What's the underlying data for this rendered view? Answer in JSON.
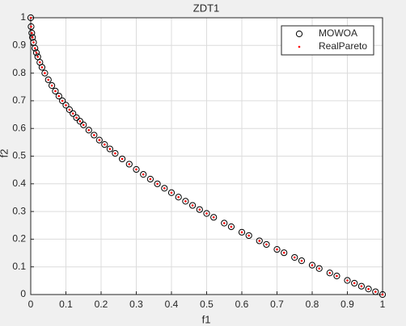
{
  "chart_data": {
    "type": "scatter",
    "title": "ZDT1",
    "x_label": "f1",
    "y_label": "f2",
    "xlim": [
      0,
      1
    ],
    "ylim": [
      0,
      1
    ],
    "xticks": [
      0,
      0.1,
      0.2,
      0.3,
      0.4,
      0.5,
      0.6,
      0.7,
      0.8,
      0.9,
      1
    ],
    "yticks": [
      0,
      0.1,
      0.2,
      0.3,
      0.4,
      0.5,
      0.6,
      0.7,
      0.8,
      0.9,
      1
    ],
    "grid": true,
    "legend": "northeast",
    "series": [
      {
        "name": "MOWOA",
        "color": "#000000",
        "marker": "circle",
        "x": [
          0,
          0.001,
          0.003,
          0.005,
          0.008,
          0.012,
          0.016,
          0.02,
          0.026,
          0.032,
          0.04,
          0.05,
          0.06,
          0.07,
          0.08,
          0.09,
          0.1,
          0.11,
          0.12,
          0.13,
          0.14,
          0.15,
          0.165,
          0.18,
          0.195,
          0.21,
          0.225,
          0.24,
          0.26,
          0.28,
          0.3,
          0.32,
          0.34,
          0.36,
          0.38,
          0.4,
          0.42,
          0.44,
          0.46,
          0.48,
          0.5,
          0.52,
          0.55,
          0.57,
          0.6,
          0.62,
          0.65,
          0.67,
          0.7,
          0.72,
          0.75,
          0.77,
          0.8,
          0.82,
          0.85,
          0.87,
          0.9,
          0.92,
          0.94,
          0.96,
          0.98,
          1
        ],
        "values": [
          1,
          0.968,
          0.945,
          0.929,
          0.911,
          0.89,
          0.874,
          0.859,
          0.839,
          0.821,
          0.8,
          0.776,
          0.755,
          0.735,
          0.717,
          0.7,
          0.684,
          0.668,
          0.654,
          0.639,
          0.626,
          0.613,
          0.594,
          0.576,
          0.558,
          0.542,
          0.526,
          0.51,
          0.49,
          0.471,
          0.452,
          0.434,
          0.417,
          0.4,
          0.384,
          0.368,
          0.352,
          0.337,
          0.322,
          0.307,
          0.293,
          0.279,
          0.258,
          0.245,
          0.225,
          0.213,
          0.194,
          0.181,
          0.163,
          0.151,
          0.134,
          0.122,
          0.106,
          0.094,
          0.078,
          0.067,
          0.051,
          0.041,
          0.03,
          0.02,
          0.01,
          0
        ]
      },
      {
        "name": "RealPareto",
        "color": "#ff0000",
        "marker": "dot",
        "x": [
          0,
          0.001,
          0.003,
          0.005,
          0.008,
          0.012,
          0.016,
          0.02,
          0.026,
          0.032,
          0.04,
          0.05,
          0.06,
          0.07,
          0.08,
          0.09,
          0.1,
          0.11,
          0.12,
          0.13,
          0.14,
          0.15,
          0.165,
          0.18,
          0.195,
          0.21,
          0.225,
          0.24,
          0.26,
          0.28,
          0.3,
          0.32,
          0.34,
          0.36,
          0.38,
          0.4,
          0.42,
          0.44,
          0.46,
          0.48,
          0.5,
          0.52,
          0.55,
          0.57,
          0.6,
          0.62,
          0.65,
          0.67,
          0.7,
          0.72,
          0.75,
          0.77,
          0.8,
          0.82,
          0.85,
          0.87,
          0.9,
          0.92,
          0.94,
          0.96,
          0.98,
          1
        ],
        "values": [
          1,
          0.968,
          0.945,
          0.929,
          0.911,
          0.89,
          0.874,
          0.859,
          0.839,
          0.821,
          0.8,
          0.776,
          0.755,
          0.735,
          0.717,
          0.7,
          0.684,
          0.668,
          0.654,
          0.639,
          0.626,
          0.613,
          0.594,
          0.576,
          0.558,
          0.542,
          0.526,
          0.51,
          0.49,
          0.471,
          0.452,
          0.434,
          0.417,
          0.4,
          0.384,
          0.368,
          0.352,
          0.337,
          0.322,
          0.307,
          0.293,
          0.279,
          0.258,
          0.245,
          0.225,
          0.213,
          0.194,
          0.181,
          0.163,
          0.151,
          0.134,
          0.122,
          0.106,
          0.094,
          0.078,
          0.067,
          0.051,
          0.041,
          0.03,
          0.02,
          0.01,
          0
        ]
      }
    ]
  }
}
